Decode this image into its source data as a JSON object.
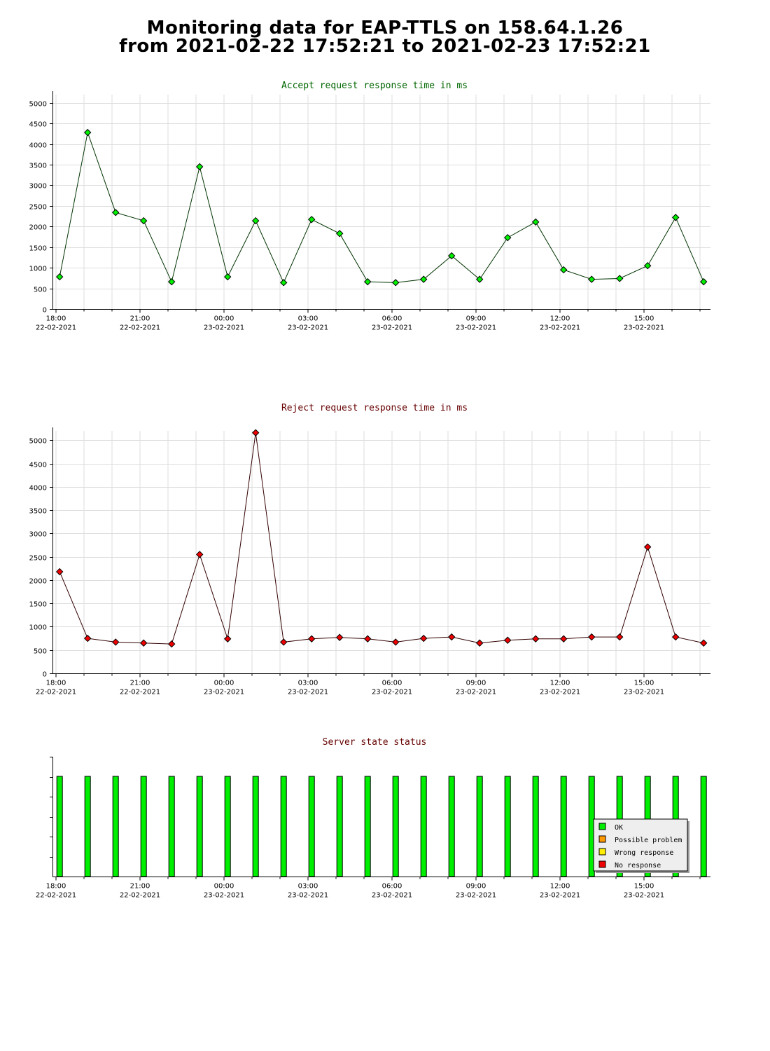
{
  "page": {
    "title_line1": "Monitoring data for EAP-TTLS on 158.64.1.26",
    "title_line2": "from 2021-02-22 17:52:21 to 2021-02-23 17:52:21"
  },
  "x_axis": {
    "ticks": [
      {
        "time": "18:00",
        "date": "22-02-2021",
        "h": 0
      },
      {
        "time": "21:00",
        "date": "22-02-2021",
        "h": 3
      },
      {
        "time": "00:00",
        "date": "23-02-2021",
        "h": 6
      },
      {
        "time": "03:00",
        "date": "23-02-2021",
        "h": 9
      },
      {
        "time": "06:00",
        "date": "23-02-2021",
        "h": 12
      },
      {
        "time": "09:00",
        "date": "23-02-2021",
        "h": 15
      },
      {
        "time": "12:00",
        "date": "23-02-2021",
        "h": 18
      },
      {
        "time": "15:00",
        "date": "23-02-2021",
        "h": 21
      }
    ]
  },
  "colors": {
    "accept_line": "#003300",
    "accept_marker": "#00ee00",
    "accept_title": "#006600",
    "reject_line": "#330000",
    "reject_marker": "#ee0000",
    "reject_title": "#660000",
    "status_title": "#660000",
    "grid": "#dddddd",
    "ok": "#00ee00",
    "possible_problem": "#ff9900",
    "wrong_response": "#ffee00",
    "no_response": "#ee0000"
  },
  "chart_data": [
    {
      "type": "line",
      "title": "Accept request response time in ms",
      "xlabel": "",
      "ylabel": "",
      "ylim": [
        0,
        5200
      ],
      "yticks": [
        0,
        500,
        1000,
        1500,
        2000,
        2500,
        3000,
        3500,
        4000,
        4500,
        5000
      ],
      "x_hours": [
        0.13,
        1.13,
        2.13,
        3.13,
        4.13,
        5.13,
        6.13,
        7.13,
        8.13,
        9.13,
        10.13,
        11.13,
        12.13,
        13.13,
        14.13,
        15.13,
        16.13,
        17.13,
        18.13,
        19.13,
        20.13,
        21.13,
        22.13,
        23.13
      ],
      "values": [
        780,
        4280,
        2340,
        2140,
        660,
        3450,
        780,
        2140,
        640,
        2170,
        1830,
        660,
        640,
        720,
        1290,
        720,
        1730,
        2110,
        950,
        720,
        740,
        1050,
        2220,
        660
      ],
      "grid": true
    },
    {
      "type": "line",
      "title": "Reject request response time in ms",
      "xlabel": "",
      "ylabel": "",
      "ylim": [
        0,
        5200
      ],
      "yticks": [
        0,
        500,
        1000,
        1500,
        2000,
        2500,
        3000,
        3500,
        4000,
        4500,
        5000
      ],
      "x_hours": [
        0.13,
        1.13,
        2.13,
        3.13,
        4.13,
        5.13,
        6.13,
        7.13,
        8.13,
        9.13,
        10.13,
        11.13,
        12.13,
        13.13,
        14.13,
        15.13,
        16.13,
        17.13,
        18.13,
        19.13,
        20.13,
        21.13,
        22.13,
        23.13
      ],
      "values": [
        2180,
        750,
        670,
        650,
        630,
        2550,
        740,
        5160,
        670,
        740,
        770,
        740,
        670,
        750,
        780,
        650,
        710,
        740,
        740,
        780,
        780,
        2710,
        780,
        650
      ],
      "grid": true
    },
    {
      "type": "bar",
      "title": "Server state status",
      "xlabel": "",
      "ylabel": "",
      "x_hours": [
        0.13,
        1.13,
        2.13,
        3.13,
        4.13,
        5.13,
        6.13,
        7.13,
        8.13,
        9.13,
        10.13,
        11.13,
        12.13,
        13.13,
        14.13,
        15.13,
        16.13,
        17.13,
        18.13,
        19.13,
        20.13,
        21.13,
        22.13,
        23.13
      ],
      "states": [
        "OK",
        "OK",
        "OK",
        "OK",
        "OK",
        "OK",
        "OK",
        "OK",
        "OK",
        "OK",
        "OK",
        "OK",
        "OK",
        "OK",
        "OK",
        "OK",
        "OK",
        "OK",
        "OK",
        "OK",
        "OK",
        "OK",
        "OK",
        "OK"
      ],
      "legend": [
        "OK",
        "Possible problem",
        "Wrong response",
        "No response"
      ],
      "legend_position": "bottom-right",
      "grid": false
    }
  ]
}
